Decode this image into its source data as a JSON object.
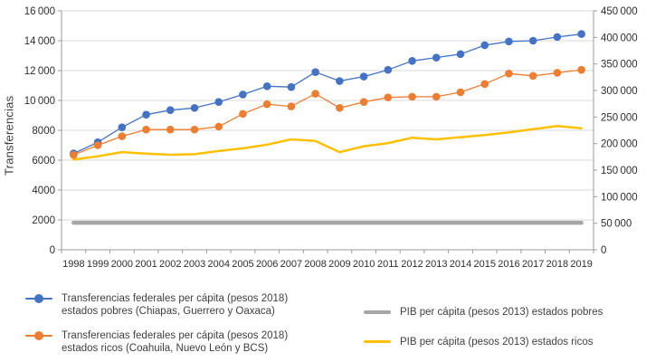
{
  "chart_data": {
    "type": "line",
    "title": "",
    "ylabel_left": "Transferencias",
    "x_categories": [
      "1998",
      "1999",
      "2000",
      "2001",
      "2002",
      "2003",
      "2004",
      "2005",
      "2006",
      "2007",
      "2008",
      "2009",
      "2010",
      "2011",
      "2012",
      "2013",
      "2014",
      "2015",
      "2016",
      "2017",
      "2018",
      "2019"
    ],
    "left_axis": {
      "min": 0,
      "max": 16000,
      "step": 2000
    },
    "right_axis": {
      "min": 0,
      "max": 450000,
      "step": 50000
    },
    "grid": "horizontal",
    "legend_position": "bottom",
    "colors": {
      "blue": "#4472C4",
      "orange": "#ED7D31",
      "gray": "#A6A6A6",
      "yellow": "#FFC000",
      "gridline": "#D9D9D9",
      "axis_line": "#9B9B9B",
      "tick_text": "#2E2E2E"
    },
    "series": [
      {
        "id": "transferencias-pobres",
        "axis": "left",
        "style": "line-markers",
        "color": "#4472C4",
        "label_lines": [
          "Transferencias federales per cápita (pesos 2018)",
          "estados pobres (Chiapas, Guerrero y Oaxaca)"
        ],
        "values": [
          6450,
          7200,
          8200,
          9050,
          9350,
          9500,
          9900,
          10400,
          10950,
          10900,
          11900,
          11300,
          11600,
          12050,
          12650,
          12870,
          13100,
          13700,
          13950,
          14000,
          14250,
          14450
        ]
      },
      {
        "id": "transferencias-ricos",
        "axis": "left",
        "style": "line-markers",
        "color": "#ED7D31",
        "label_lines": [
          "Transferencias federales per cápita (pesos 2018)",
          "estados ricos (Coahuila, Nuevo León y BCS)"
        ],
        "values": [
          6350,
          7000,
          7600,
          8050,
          8050,
          8050,
          8250,
          9100,
          9750,
          9600,
          10450,
          9500,
          9900,
          10200,
          10250,
          10250,
          10550,
          11100,
          11800,
          11650,
          11850,
          12050
        ]
      },
      {
        "id": "pib-pobres",
        "axis": "right",
        "style": "line",
        "line_width": 4.5,
        "color": "#A6A6A6",
        "label_lines": [
          "PIB per cápita (pesos 2013) estados pobres"
        ],
        "values": [
          51000,
          51000,
          51000,
          51000,
          51000,
          51000,
          51000,
          51000,
          51000,
          51000,
          51000,
          51000,
          51000,
          51000,
          51000,
          51000,
          51000,
          51000,
          51000,
          51000,
          51000,
          51000
        ]
      },
      {
        "id": "pib-ricos",
        "axis": "right",
        "style": "line",
        "line_width": 2.5,
        "color": "#FFC000",
        "label_lines": [
          "PIB per cápita (pesos 2013) estados ricos"
        ],
        "values": [
          170000,
          176000,
          184000,
          181000,
          179000,
          180000,
          186000,
          191000,
          198000,
          208000,
          205000,
          184000,
          195000,
          201000,
          211000,
          208000,
          212000,
          216000,
          221000,
          227000,
          233000,
          229000
        ]
      }
    ]
  }
}
